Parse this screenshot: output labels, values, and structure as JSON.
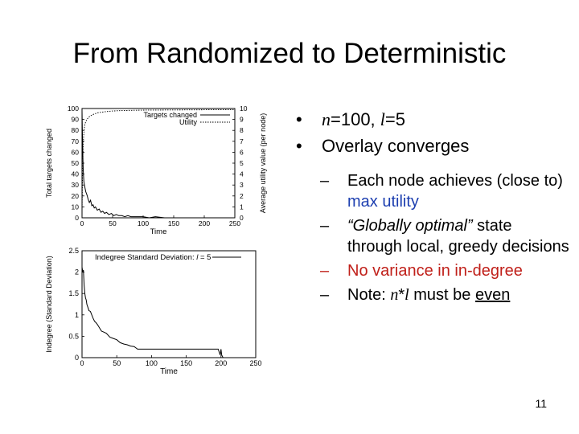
{
  "slide": {
    "title": "From Randomized to Deterministic",
    "slide_number": "11"
  },
  "bullets": {
    "b1": {
      "var_n": "n",
      "eq1": "=100, ",
      "var_l": "l",
      "eq2": "=5"
    },
    "b2": "Overlay converges",
    "sub": [
      {
        "pre": "Each node achieves (close to) ",
        "highlight": "max utility"
      },
      {
        "quote": "“Globally optimal”",
        "rest": " state through local, greedy decisions"
      },
      {
        "text": "No variance in in-degree"
      },
      {
        "pre": "Note: ",
        "var_n": "n",
        "star": "*",
        "var_l": "l",
        "mid": " must be ",
        "under": "even"
      }
    ]
  },
  "colors": {
    "highlight_blue": "#1d3fb0",
    "highlight_red": "#c0201a"
  },
  "chart_data": [
    {
      "type": "line",
      "xlabel": "Time",
      "ylabel": "Total targets changed",
      "y2label": "Average utility value (per node)",
      "xlim": [
        0,
        250
      ],
      "ylim": [
        0,
        100
      ],
      "y2lim": [
        0,
        10
      ],
      "xticks": [
        0,
        50,
        100,
        150,
        200,
        250
      ],
      "yticks": [
        0,
        10,
        20,
        30,
        40,
        50,
        60,
        70,
        80,
        90,
        100
      ],
      "y2ticks": [
        0,
        1,
        2,
        3,
        4,
        5,
        6,
        7,
        8,
        9,
        10
      ],
      "legend_position": "top-right",
      "series": [
        {
          "name": "Targets changed",
          "axis": "y",
          "style": "solid",
          "x": [
            0,
            1,
            2,
            3,
            4,
            5,
            6,
            8,
            10,
            12,
            14,
            16,
            18,
            20,
            22,
            25,
            28,
            31,
            34,
            37,
            40,
            44,
            48,
            52,
            56,
            60,
            65,
            70,
            75,
            80,
            90,
            100,
            110,
            120,
            135,
            150,
            170,
            190,
            210,
            230,
            250
          ],
          "y": [
            98,
            62,
            44,
            33,
            30,
            27,
            24,
            21,
            17,
            14,
            16,
            11,
            12,
            9,
            10,
            7,
            8,
            5,
            6,
            4,
            5,
            3,
            4,
            2,
            3,
            2,
            2,
            1,
            2,
            1,
            1,
            1,
            0,
            1,
            0,
            0,
            0,
            0,
            0,
            0,
            0
          ]
        },
        {
          "name": "Utility",
          "axis": "y2",
          "style": "dotted",
          "x": [
            0,
            1,
            2,
            3,
            4,
            5,
            6,
            8,
            10,
            13,
            16,
            20,
            25,
            30,
            40,
            50,
            60,
            80,
            100,
            150,
            200,
            250
          ],
          "y": [
            0.5,
            4.5,
            6.8,
            7.8,
            8.3,
            8.6,
            8.8,
            9.0,
            9.15,
            9.3,
            9.4,
            9.5,
            9.6,
            9.65,
            9.72,
            9.77,
            9.8,
            9.83,
            9.85,
            9.87,
            9.88,
            9.88
          ]
        }
      ]
    },
    {
      "type": "line",
      "xlabel": "Time",
      "ylabel": "Indegree (Standard Deviation)",
      "xlim": [
        0,
        250
      ],
      "ylim": [
        0,
        2.5
      ],
      "xticks": [
        0,
        50,
        100,
        150,
        200,
        250
      ],
      "yticks": [
        0,
        0.5,
        1,
        1.5,
        2,
        2.5
      ],
      "ytick_labels": [
        "0",
        "0.5",
        "1",
        "1.5",
        "2",
        "2.5"
      ],
      "legend": {
        "pre": "Indegree Standard Deviation: ",
        "var": "l",
        "post": " = 5"
      },
      "legend_position": "top-left",
      "series": [
        {
          "name": "Indegree Standard Deviation",
          "style": "solid",
          "x": [
            0,
            1,
            2,
            3,
            4,
            5,
            6,
            7,
            8,
            9,
            10,
            12,
            14,
            16,
            18,
            20,
            22,
            25,
            28,
            31,
            35,
            40,
            45,
            50,
            55,
            60,
            65,
            70,
            75,
            80,
            85,
            90,
            95,
            100,
            150,
            196,
            199,
            200,
            201,
            203,
            250
          ],
          "y": [
            2.12,
            2.0,
            2.05,
            1.7,
            1.5,
            1.4,
            1.35,
            1.25,
            1.2,
            1.15,
            1.1,
            1.08,
            1.0,
            0.92,
            0.85,
            0.82,
            0.78,
            0.7,
            0.62,
            0.6,
            0.57,
            0.48,
            0.45,
            0.42,
            0.35,
            0.32,
            0.3,
            0.27,
            0.26,
            0.2,
            0.2,
            0.2,
            0.2,
            0.2,
            0.2,
            0.2,
            0.06,
            0.2,
            0.06,
            0.0,
            0.0
          ]
        }
      ]
    }
  ]
}
